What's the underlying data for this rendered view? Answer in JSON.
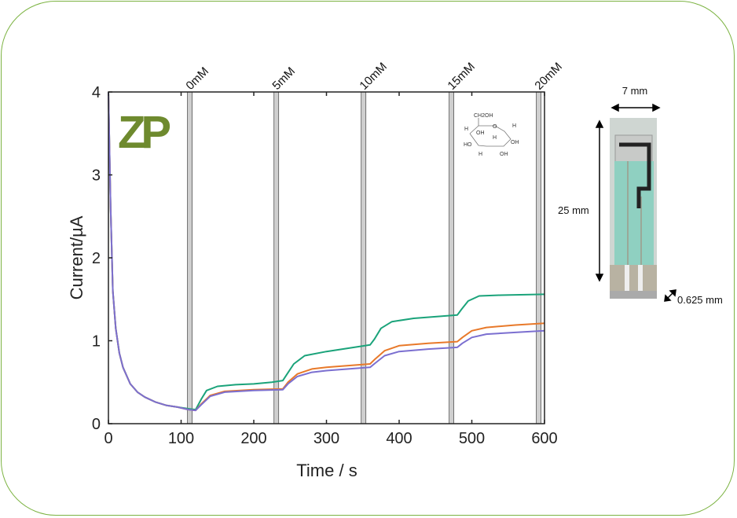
{
  "chart_data": {
    "type": "line",
    "xlabel": "Time / s",
    "ylabel": "Current/µA",
    "xlim": [
      0,
      600
    ],
    "ylim": [
      0,
      4
    ],
    "xticks": [
      0,
      100,
      200,
      300,
      400,
      500,
      600
    ],
    "yticks": [
      0,
      1,
      2,
      3,
      4
    ],
    "grid": false,
    "injection_markers": [
      {
        "x": 112,
        "label": "0mM"
      },
      {
        "x": 231,
        "label": "5mM"
      },
      {
        "x": 351,
        "label": "10mM"
      },
      {
        "x": 472,
        "label": "15mM"
      },
      {
        "x": 592,
        "label": "20mM"
      }
    ],
    "series": [
      {
        "color": "#1aa37a",
        "x": [
          0,
          3,
          6,
          10,
          15,
          20,
          30,
          40,
          50,
          65,
          80,
          95,
          110,
          120,
          128,
          135,
          150,
          175,
          200,
          225,
          240,
          246,
          255,
          270,
          300,
          330,
          360,
          366,
          375,
          390,
          420,
          450,
          480,
          486,
          495,
          510,
          540,
          600
        ],
        "y": [
          4,
          2.6,
          1.6,
          1.15,
          0.85,
          0.68,
          0.48,
          0.38,
          0.32,
          0.26,
          0.22,
          0.2,
          0.18,
          0.17,
          0.3,
          0.4,
          0.45,
          0.47,
          0.48,
          0.5,
          0.52,
          0.6,
          0.72,
          0.82,
          0.87,
          0.91,
          0.95,
          1.02,
          1.15,
          1.23,
          1.27,
          1.29,
          1.31,
          1.38,
          1.48,
          1.54,
          1.55,
          1.56
        ]
      },
      {
        "color": "#e8792a",
        "x": [
          0,
          3,
          6,
          10,
          15,
          20,
          30,
          40,
          50,
          65,
          80,
          95,
          110,
          120,
          128,
          140,
          160,
          200,
          240,
          247,
          260,
          280,
          300,
          330,
          360,
          367,
          380,
          400,
          440,
          480,
          487,
          500,
          520,
          560,
          600
        ],
        "y": [
          4,
          2.6,
          1.6,
          1.15,
          0.85,
          0.68,
          0.48,
          0.38,
          0.32,
          0.26,
          0.22,
          0.2,
          0.17,
          0.16,
          0.24,
          0.34,
          0.39,
          0.41,
          0.42,
          0.5,
          0.6,
          0.66,
          0.68,
          0.7,
          0.72,
          0.78,
          0.88,
          0.94,
          0.97,
          0.99,
          1.04,
          1.12,
          1.16,
          1.19,
          1.21
        ]
      },
      {
        "color": "#7b6fd0",
        "x": [
          0,
          3,
          6,
          10,
          15,
          20,
          30,
          40,
          50,
          65,
          80,
          95,
          110,
          120,
          128,
          140,
          160,
          200,
          240,
          247,
          260,
          280,
          300,
          330,
          360,
          367,
          380,
          400,
          440,
          480,
          487,
          500,
          520,
          560,
          600
        ],
        "y": [
          4,
          2.6,
          1.6,
          1.15,
          0.85,
          0.68,
          0.48,
          0.38,
          0.32,
          0.26,
          0.22,
          0.2,
          0.17,
          0.16,
          0.23,
          0.33,
          0.38,
          0.4,
          0.41,
          0.48,
          0.57,
          0.62,
          0.64,
          0.66,
          0.68,
          0.73,
          0.82,
          0.87,
          0.9,
          0.92,
          0.97,
          1.04,
          1.08,
          1.1,
          1.12
        ]
      }
    ]
  },
  "logo": {
    "text": "ZP",
    "color": "#6e8a2e"
  },
  "molecule": {
    "labels": [
      "CH2OH",
      "O",
      "H",
      "H",
      "OH",
      "H",
      "HO",
      "OH",
      "H",
      "OH"
    ]
  },
  "sensor": {
    "width_label": "7 mm",
    "length_label": "25 mm",
    "gap_label": "0.625 mm"
  },
  "frame_color": "#7cb342"
}
